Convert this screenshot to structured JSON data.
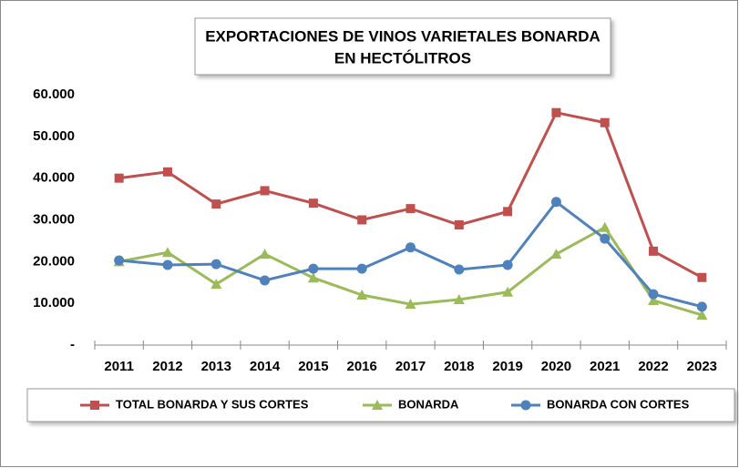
{
  "chart_data": {
    "type": "line",
    "title": [
      "EXPORTACIONES DE VINOS VARIETALES BONARDA",
      "EN HECTÓLITROS"
    ],
    "categories": [
      "2011",
      "2012",
      "2013",
      "2014",
      "2015",
      "2016",
      "2017",
      "2018",
      "2019",
      "2020",
      "2021",
      "2022",
      "2023"
    ],
    "series": [
      {
        "name": "TOTAL BONARDA Y SUS CORTES",
        "color": "#c0504d",
        "marker": "square",
        "values": [
          40000,
          41500,
          33800,
          37000,
          34000,
          30000,
          32700,
          28800,
          32000,
          55700,
          53300,
          22500,
          16200
        ]
      },
      {
        "name": "BONARDA",
        "color": "#9bbb59",
        "marker": "triangle",
        "values": [
          20000,
          22200,
          14600,
          21800,
          16100,
          12000,
          9800,
          10900,
          12700,
          21800,
          28200,
          10700,
          7200
        ]
      },
      {
        "name": "BONARDA CON CORTES",
        "color": "#4f81bd",
        "marker": "circle",
        "values": [
          20300,
          19200,
          19400,
          15500,
          18300,
          18300,
          23400,
          18100,
          19200,
          34300,
          25500,
          12200,
          9200
        ]
      }
    ],
    "ylim": [
      0,
      60000
    ],
    "yticks": [
      {
        "value": 0,
        "label": "-"
      },
      {
        "value": 10000,
        "label": "10.000"
      },
      {
        "value": 20000,
        "label": "20.000"
      },
      {
        "value": 30000,
        "label": "30.000"
      },
      {
        "value": 40000,
        "label": "40.000"
      },
      {
        "value": 50000,
        "label": "50.000"
      },
      {
        "value": 60000,
        "label": "60.000"
      }
    ],
    "grid": false,
    "legend": "bottom"
  }
}
